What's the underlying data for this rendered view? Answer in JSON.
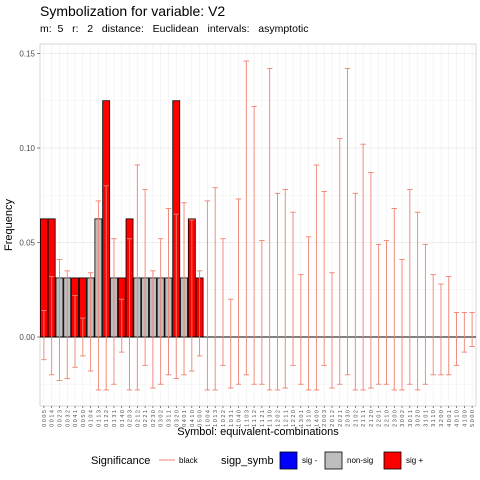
{
  "header": {
    "title": "Symbolization for variable: V2",
    "subtitle": "m:  5   r:   2   distance:   Euclidean   intervals:   asymptotic"
  },
  "colors": {
    "sig_minus": "#0000FF",
    "non_sig": "#BEBEBE",
    "sig_plus": "#FF0000",
    "interval": "#F08070",
    "zero_line": "#000000"
  },
  "chart_data": {
    "type": "bar",
    "title": "Symbolization for variable: V2",
    "subtitle": "m:  5   r:   2   distance:   Euclidean   intervals:   asymptotic",
    "xlabel": "Symbol: equivalent-combinations",
    "ylabel": "Frequency",
    "ylim": [
      -0.0365,
      0.155
    ],
    "yticks": [
      0.0,
      0.05,
      0.1,
      0.15
    ],
    "ytick_labels": [
      "0.00",
      "0.05",
      "0.10",
      "0.15"
    ],
    "grid": true,
    "legend_position": "bottom",
    "categories": [
      "0 0 0 5",
      "0 0 1 4",
      "0 0 2 3",
      "0 0 3 2",
      "0 0 4 1",
      "0 0 5 0",
      "0 1 0 4",
      "0 1 1 3",
      "0 1 2 2",
      "0 1 3 1",
      "0 1 4 0",
      "0 2 0 3",
      "0 2 1 2",
      "0 2 2 1",
      "0 2 3 0",
      "0 3 0 2",
      "0 3 1 1",
      "0 3 2 0",
      "0 4 0 1",
      "0 4 1 0",
      "0 5 0 0",
      "1 0 0 4",
      "1 0 1 3",
      "1 0 2 2",
      "1 0 3 1",
      "1 0 4 0",
      "1 1 0 3",
      "1 1 1 2",
      "1 1 2 1",
      "1 1 3 0",
      "1 2 0 2",
      "1 2 1 1",
      "1 2 2 0",
      "1 3 0 1",
      "1 3 1 0",
      "1 4 0 0",
      "2 0 0 3",
      "2 0 1 2",
      "2 0 2 1",
      "2 0 3 0",
      "2 1 0 2",
      "2 1 1 1",
      "2 1 2 0",
      "2 2 0 1",
      "2 2 1 0",
      "2 3 0 0",
      "3 0 0 2",
      "3 0 1 1",
      "3 0 2 0",
      "3 1 0 1",
      "3 1 1 0",
      "3 2 0 0",
      "4 0 0 1",
      "4 0 1 0",
      "4 1 0 0",
      "5 0 0 0"
    ],
    "values": [
      0.0625,
      0.0625,
      0.03125,
      0.03125,
      0.03125,
      0.03125,
      0.03125,
      0.0625,
      0.125,
      0.03125,
      0.03125,
      0.0625,
      0.03125,
      0.03125,
      0.03125,
      0.03125,
      0.03125,
      0.125,
      0.03125,
      0.0625,
      0.03125,
      0,
      0,
      0,
      0,
      0,
      0,
      0,
      0,
      0,
      0,
      0,
      0,
      0,
      0,
      0,
      0,
      0,
      0,
      0,
      0,
      0,
      0,
      0,
      0,
      0,
      0,
      0,
      0,
      0,
      0,
      0,
      0,
      0,
      0,
      0
    ],
    "significance": [
      "sig +",
      "sig +",
      "non-sig",
      "non-sig",
      "sig +",
      "sig +",
      "non-sig",
      "non-sig",
      "sig +",
      "non-sig",
      "sig +",
      "sig +",
      "non-sig",
      "non-sig",
      "non-sig",
      "non-sig",
      "non-sig",
      "sig +",
      "non-sig",
      "sig +",
      "sig +",
      "",
      "",
      "",
      "",
      "",
      "",
      "",
      "",
      "",
      "",
      "",
      "",
      "",
      "",
      "",
      "",
      "",
      "",
      "",
      "",
      "",
      "",
      "",
      "",
      "",
      "",
      "",
      "",
      "",
      "",
      "",
      "",
      "",
      "",
      ""
    ],
    "ci_lower": [
      -0.012,
      -0.02,
      -0.023,
      -0.022,
      -0.016,
      -0.01,
      -0.018,
      -0.028,
      -0.028,
      -0.025,
      -0.008,
      -0.028,
      -0.028,
      -0.015,
      -0.027,
      -0.025,
      -0.02,
      -0.022,
      -0.02,
      -0.018,
      -0.01,
      -0.028,
      -0.028,
      -0.015,
      -0.027,
      -0.025,
      -0.02,
      -0.025,
      -0.025,
      -0.028,
      -0.028,
      -0.027,
      -0.015,
      -0.025,
      -0.028,
      -0.028,
      -0.015,
      -0.027,
      -0.025,
      -0.02,
      -0.028,
      -0.028,
      -0.027,
      -0.025,
      -0.025,
      -0.028,
      -0.028,
      -0.025,
      -0.028,
      -0.025,
      -0.02,
      -0.02,
      -0.02,
      -0.015,
      -0.008,
      -0.005
    ],
    "ci_upper": [
      0.014,
      0.032,
      0.041,
      0.035,
      0.022,
      0.01,
      0.034,
      0.072,
      0.08,
      0.052,
      0.02,
      0.052,
      0.091,
      0.078,
      0.035,
      0.052,
      0.068,
      0.065,
      0.071,
      0.062,
      0.035,
      0.072,
      0.079,
      0.052,
      0.02,
      0.073,
      0.146,
      0.122,
      0.051,
      0.142,
      0.076,
      0.078,
      0.066,
      0.033,
      0.053,
      0.091,
      0.077,
      0.034,
      0.105,
      0.142,
      0.076,
      0.102,
      0.087,
      0.049,
      0.051,
      0.068,
      0.041,
      0.078,
      0.066,
      0.049,
      0.033,
      0.028,
      0.032,
      0.013,
      0.013,
      0.013
    ]
  },
  "legend": {
    "significance_title": "Significance",
    "significance_item": "black",
    "symb_title": "sigp_symb",
    "items": [
      {
        "label": "sig -",
        "color": "#0000FF"
      },
      {
        "label": "non-sig",
        "color": "#BEBEBE"
      },
      {
        "label": "sig +",
        "color": "#FF0000"
      }
    ]
  }
}
